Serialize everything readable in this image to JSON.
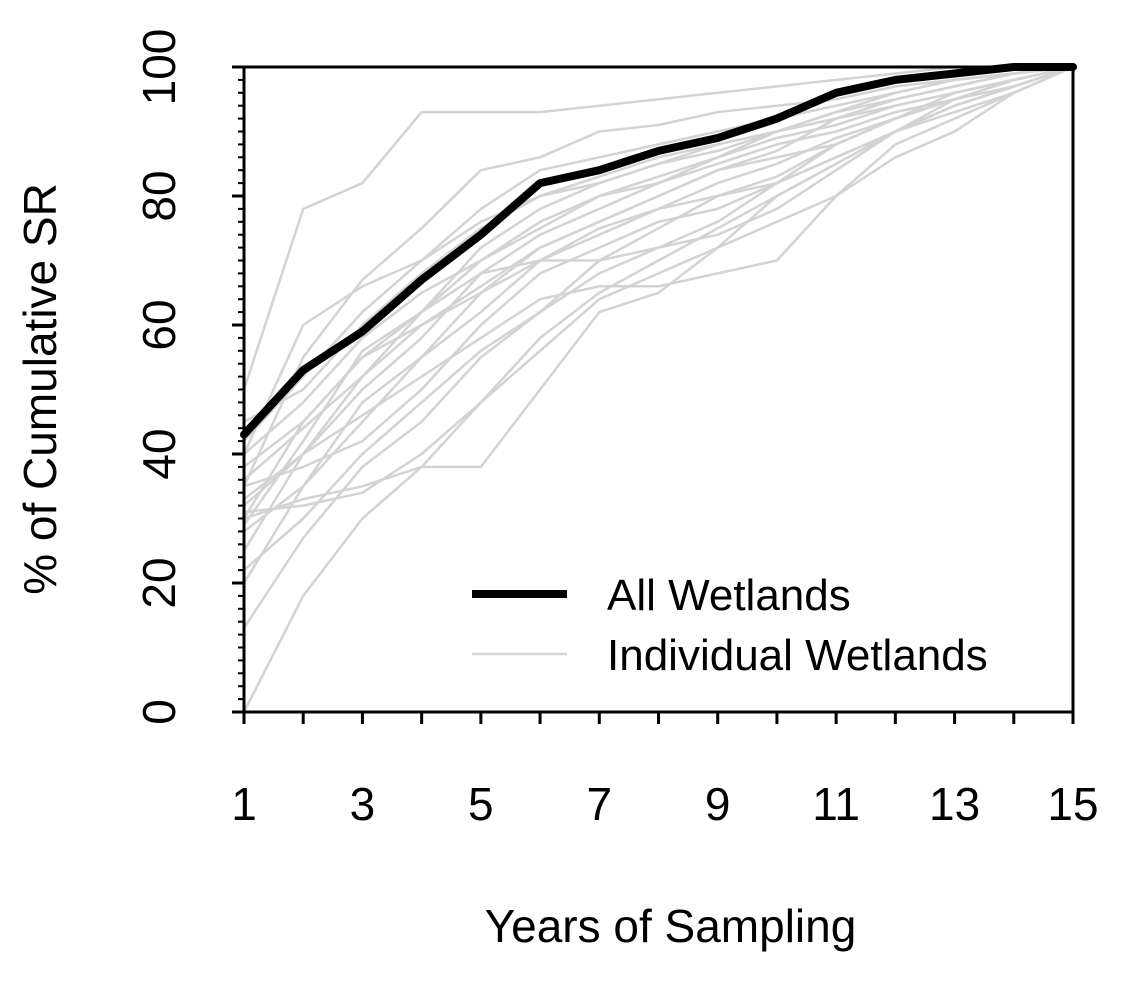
{
  "chart_data": {
    "type": "line",
    "title": "",
    "xlabel": "Years of Sampling",
    "ylabel": "% of Cumulative SR",
    "xlim": [
      1,
      15
    ],
    "ylim": [
      0,
      100
    ],
    "x_ticks": [
      1,
      3,
      5,
      7,
      9,
      11,
      13,
      15
    ],
    "y_ticks": [
      0,
      20,
      40,
      60,
      80,
      100
    ],
    "x_tick_labels": [
      "1",
      "3",
      "5",
      "7",
      "9",
      "11",
      "13",
      "15"
    ],
    "y_tick_labels": [
      "0",
      "20",
      "40",
      "60",
      "80",
      "100"
    ],
    "grid": false,
    "legend_position": "bottom-right",
    "x": [
      1,
      2,
      3,
      4,
      5,
      6,
      7,
      8,
      9,
      10,
      11,
      12,
      13,
      14,
      15
    ],
    "series": [
      {
        "name": "All Wetlands",
        "color": "#000000",
        "values": [
          43,
          53,
          59,
          67,
          74,
          82,
          84,
          87,
          89,
          92,
          96,
          98,
          99,
          100,
          100
        ]
      }
    ],
    "individual_series": {
      "name": "Individual Wetlands",
      "color": "#d3d3d3",
      "lines": [
        [
          50,
          78,
          82,
          93,
          93,
          93,
          94,
          95,
          96,
          97,
          98,
          99,
          100,
          100,
          100
        ],
        [
          35,
          55,
          67,
          75,
          84,
          86,
          90,
          91,
          93,
          94,
          95,
          97,
          98,
          99,
          100
        ],
        [
          30,
          45,
          55,
          60,
          65,
          72,
          76,
          80,
          84,
          87,
          92,
          95,
          97,
          99,
          100
        ],
        [
          25,
          40,
          52,
          62,
          70,
          76,
          80,
          83,
          86,
          89,
          91,
          94,
          96,
          98,
          100
        ],
        [
          20,
          35,
          45,
          55,
          65,
          70,
          75,
          78,
          82,
          85,
          89,
          92,
          95,
          98,
          100
        ],
        [
          0,
          18,
          30,
          38,
          48,
          58,
          65,
          70,
          75,
          80,
          85,
          90,
          94,
          97,
          100
        ],
        [
          13,
          27,
          38,
          45,
          55,
          62,
          70,
          75,
          80,
          83,
          88,
          92,
          95,
          98,
          100
        ],
        [
          30,
          33,
          35,
          38,
          38,
          50,
          62,
          65,
          72,
          80,
          85,
          90,
          94,
          97,
          100
        ],
        [
          35,
          38,
          42,
          50,
          60,
          68,
          72,
          76,
          78,
          82,
          86,
          90,
          93,
          96,
          100
        ],
        [
          40,
          48,
          58,
          65,
          70,
          75,
          80,
          82,
          85,
          88,
          90,
          93,
          95,
          97,
          100
        ],
        [
          32,
          40,
          50,
          58,
          68,
          74,
          78,
          82,
          86,
          90,
          92,
          95,
          97,
          99,
          100
        ],
        [
          45,
          50,
          60,
          68,
          75,
          80,
          83,
          86,
          88,
          90,
          93,
          95,
          97,
          99,
          100
        ],
        [
          28,
          35,
          48,
          55,
          62,
          70,
          74,
          78,
          80,
          82,
          86,
          90,
          94,
          97,
          100
        ],
        [
          38,
          45,
          55,
          62,
          72,
          78,
          82,
          85,
          88,
          90,
          92,
          94,
          96,
          98,
          100
        ],
        [
          33,
          40,
          46,
          52,
          58,
          64,
          66,
          66,
          68,
          70,
          80,
          88,
          92,
          96,
          100
        ],
        [
          31,
          32,
          34,
          40,
          48,
          56,
          64,
          68,
          72,
          76,
          80,
          86,
          90,
          96,
          100
        ],
        [
          42,
          52,
          62,
          70,
          78,
          84,
          86,
          88,
          90,
          92,
          94,
          96,
          98,
          99,
          100
        ],
        [
          29,
          42,
          56,
          62,
          68,
          70,
          70,
          72,
          74,
          78,
          84,
          90,
          95,
          98,
          100
        ],
        [
          36,
          44,
          52,
          60,
          66,
          72,
          76,
          80,
          84,
          86,
          88,
          92,
          95,
          98,
          100
        ],
        [
          22,
          30,
          40,
          48,
          56,
          62,
          68,
          72,
          76,
          82,
          88,
          92,
          96,
          98,
          100
        ],
        [
          40,
          60,
          66,
          70,
          76,
          80,
          82,
          85,
          87,
          90,
          93,
          96,
          98,
          99,
          100
        ]
      ]
    },
    "legend": [
      {
        "label": "All Wetlands",
        "style": "thick-black"
      },
      {
        "label": "Individual Wetlands",
        "style": "thin-grey"
      }
    ]
  }
}
